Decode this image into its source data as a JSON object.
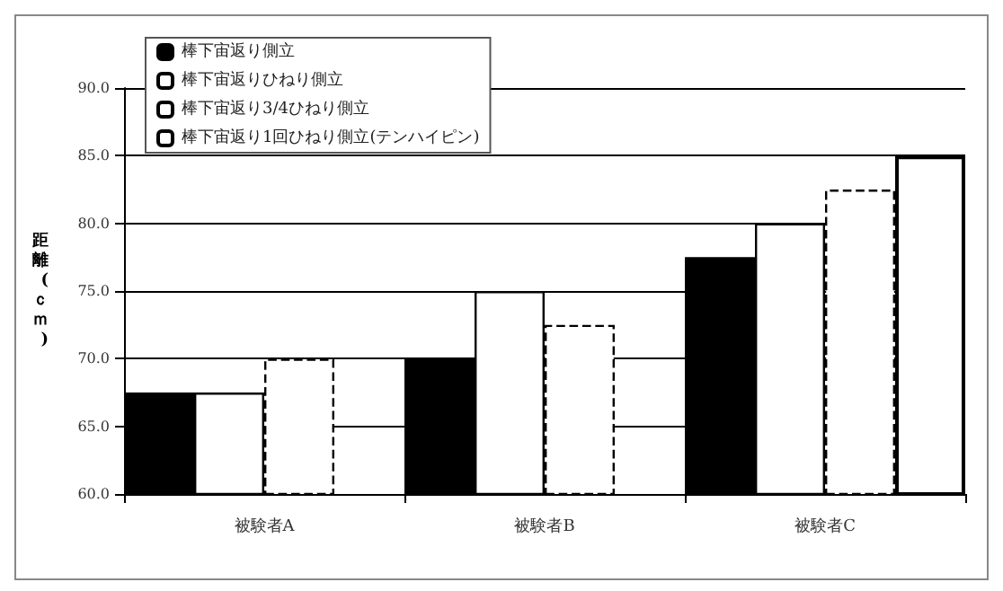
{
  "chart_data": {
    "type": "bar",
    "ylabel": "距離(ｃｍ)",
    "categories": [
      "被験者A",
      "被験者B",
      "被験者C"
    ],
    "series": [
      {
        "name": "棒下宙返り側立",
        "color": "#000000",
        "values": [
          67.5,
          70,
          77.5
        ]
      },
      {
        "name": "棒下宙返りひねり側立",
        "color": "#ffffff",
        "values": [
          67.5,
          75,
          80
        ]
      },
      {
        "name": "棒下宙返り3/4ひねり側立",
        "color": "#ffffff",
        "line_style": "dashed",
        "values": [
          70,
          72.5,
          82.5
        ]
      },
      {
        "name": "棒下宙返り1回ひねり側立(テンハイピン)",
        "color": "#ffffff",
        "values": [
          null,
          null,
          85
        ]
      }
    ],
    "ylim": [
      60,
      90
    ],
    "yticks": [
      {
        "value": 60,
        "label": "60.0"
      },
      {
        "value": 65,
        "label": "65.0"
      },
      {
        "value": 70,
        "label": "70.0"
      },
      {
        "value": 75,
        "label": "75.0"
      },
      {
        "value": 80,
        "label": "80.0"
      },
      {
        "value": 85,
        "label": "85.0"
      },
      {
        "value": 90,
        "label": "90.0"
      }
    ],
    "grid": "y",
    "legend": "top left"
  }
}
